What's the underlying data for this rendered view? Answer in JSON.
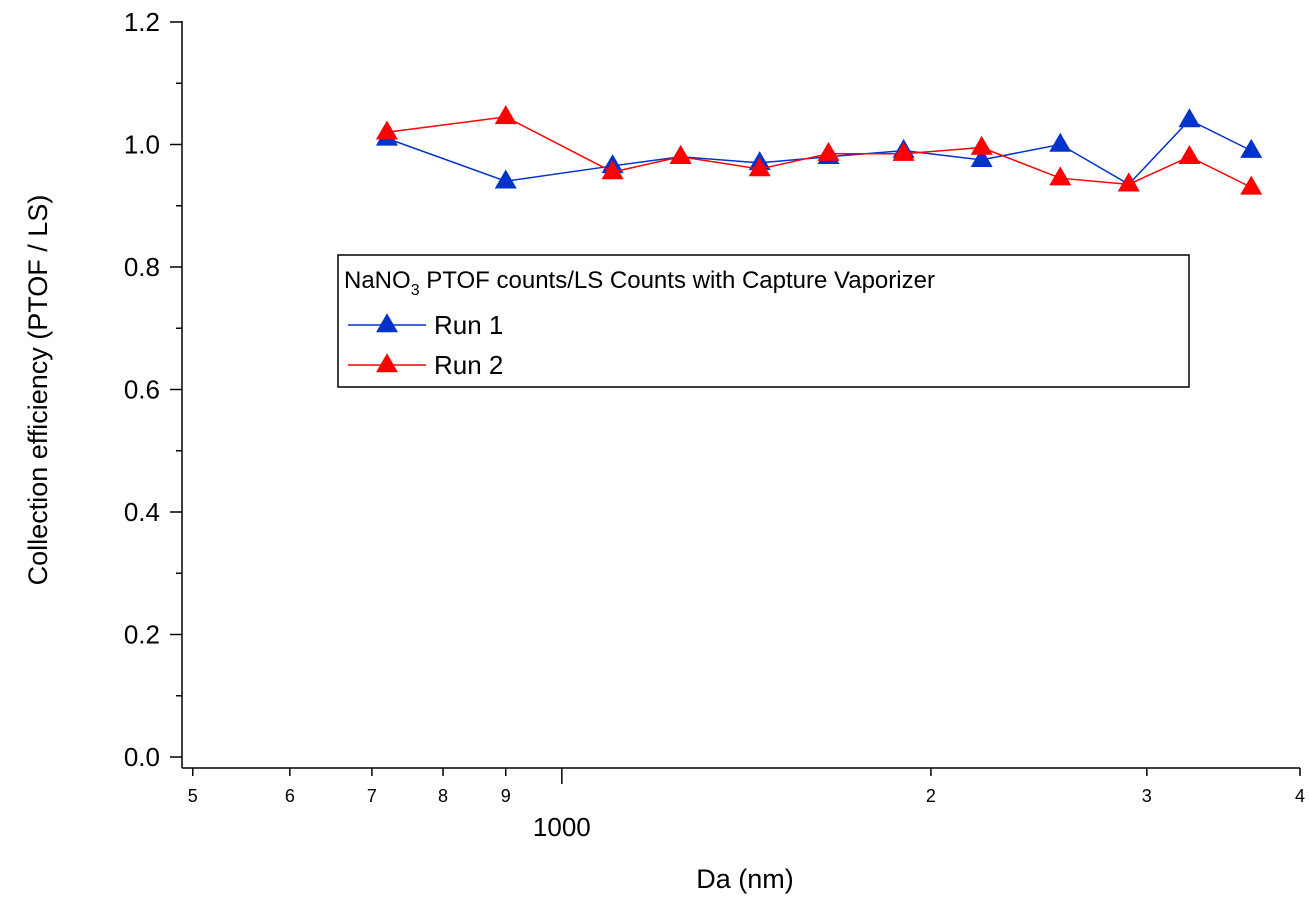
{
  "chart_data": {
    "type": "line",
    "title": "",
    "xlabel": "Da (nm)",
    "ylabel": "Collection efficiency (PTOF / LS)",
    "x_scale": "log",
    "xlim": [
      490,
      4000
    ],
    "ylim": [
      0,
      1.2
    ],
    "grid": false,
    "y_ticks": [
      "0.0",
      "0.2",
      "0.4",
      "0.6",
      "0.8",
      "1.0",
      "1.2"
    ],
    "x_major_tick_label": "1000",
    "x_minor_tick_labels": [
      {
        "value": 500,
        "label": "5"
      },
      {
        "value": 600,
        "label": "6"
      },
      {
        "value": 700,
        "label": "7"
      },
      {
        "value": 800,
        "label": "8"
      },
      {
        "value": 900,
        "label": "9"
      },
      {
        "value": 2000,
        "label": "2"
      },
      {
        "value": 3000,
        "label": "3"
      },
      {
        "value": 4000,
        "label": "4"
      }
    ],
    "legend": {
      "title_prefix": "NaNO",
      "title_subscript": "3",
      "title_suffix": " PTOF counts/LS Counts with Capture Vaporizer",
      "placement": "center"
    },
    "series": [
      {
        "name": "Run 1",
        "color": "#0033cc",
        "marker": "triangle",
        "x": [
          720,
          900,
          1100,
          1250,
          1450,
          1650,
          1900,
          2200,
          2550,
          2900,
          3250,
          3650
        ],
        "y": [
          1.01,
          0.94,
          0.965,
          0.98,
          0.97,
          0.98,
          0.99,
          0.975,
          1.0,
          0.935,
          1.04,
          0.99
        ]
      },
      {
        "name": "Run 2",
        "color": "#ff0000",
        "marker": "triangle",
        "x": [
          720,
          900,
          1100,
          1250,
          1450,
          1650,
          1900,
          2200,
          2550,
          2900,
          3250,
          3650
        ],
        "y": [
          1.02,
          1.045,
          0.955,
          0.98,
          0.96,
          0.985,
          0.985,
          0.995,
          0.945,
          0.935,
          0.98,
          0.93
        ]
      }
    ]
  }
}
